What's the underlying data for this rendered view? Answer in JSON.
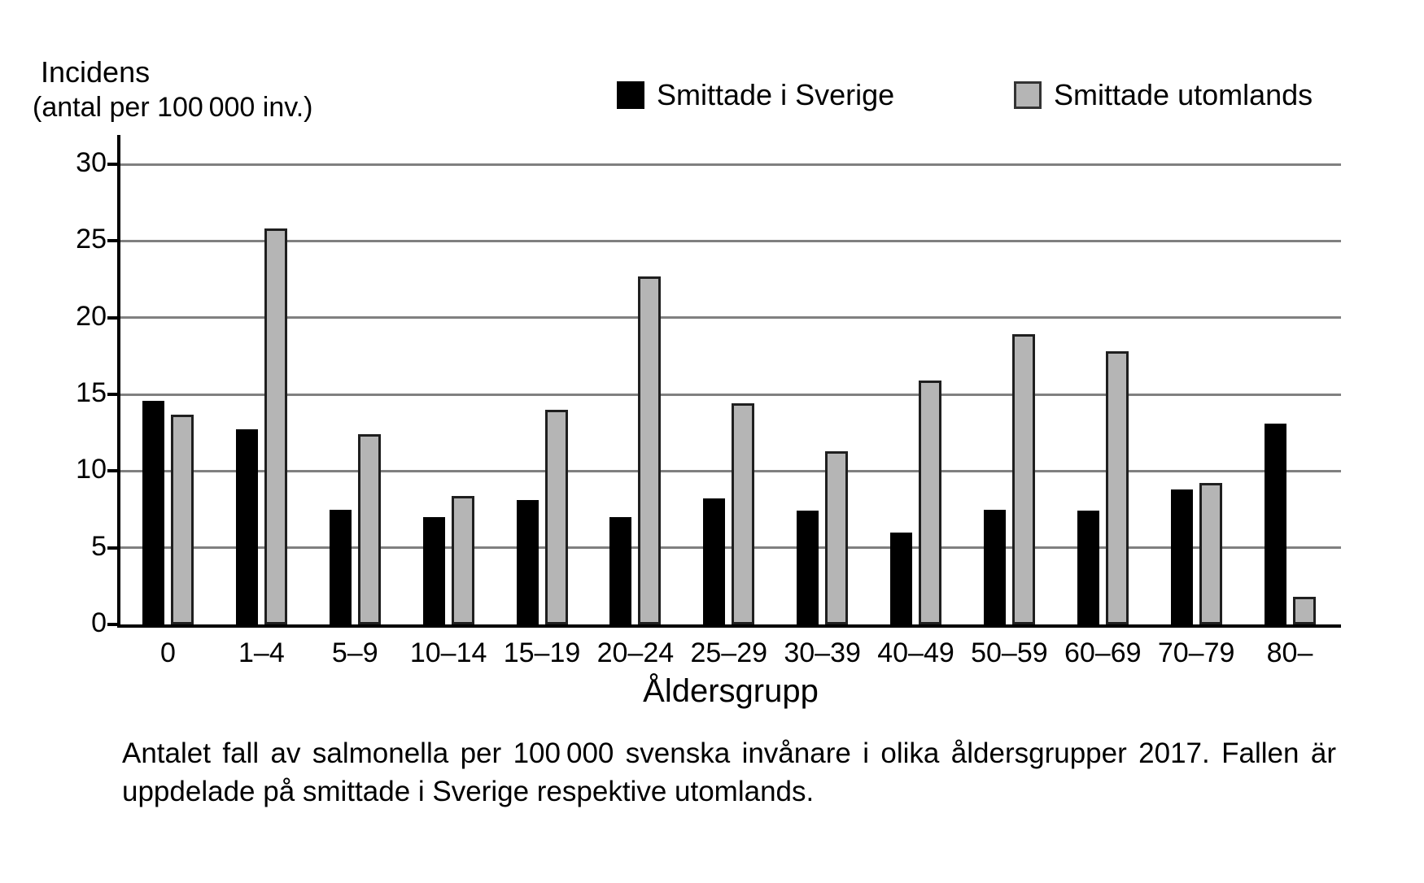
{
  "figure": {
    "y_axis_title_line1": "Incidens",
    "y_axis_title_line2": "(antal per 100 000 inv.)",
    "x_axis_title": "Åldersgrupp",
    "caption": "Antalet fall av salmonella per 100 000 svenska invånare i olika åldersgrupper 2017. Fallen är uppdelade på smittade i Sverige respektive utomlands."
  },
  "legend": [
    {
      "label": "Smittade i Sverige",
      "color": "#000000"
    },
    {
      "label": "Smittade utomlands",
      "color": "#b5b5b5"
    }
  ],
  "colors": {
    "bar_black": "#000000",
    "bar_gray": "#b5b5b5",
    "bar_gray_border": "#1f1f1f",
    "gridline": "#808080",
    "axis": "#000000"
  },
  "chart_data": {
    "type": "bar",
    "title": "",
    "xlabel": "Åldersgrupp",
    "ylabel": "Incidens (antal per 100 000 inv.)",
    "categories": [
      "0",
      "1–4",
      "5–9",
      "10–14",
      "15–19",
      "20–24",
      "25–29",
      "30–39",
      "40–49",
      "50–59",
      "60–69",
      "70–79",
      "80–"
    ],
    "series": [
      {
        "name": "Smittade i Sverige",
        "color": "#000000",
        "values": [
          14.6,
          12.7,
          7.5,
          7.0,
          8.1,
          7.0,
          8.2,
          7.4,
          6.0,
          7.5,
          7.4,
          8.8,
          13.1
        ]
      },
      {
        "name": "Smittade utomlands",
        "color": "#b5b5b5",
        "values": [
          13.7,
          25.8,
          12.4,
          8.4,
          14.0,
          22.7,
          14.4,
          11.3,
          15.9,
          18.9,
          17.8,
          9.2,
          1.8
        ]
      }
    ],
    "ylim": [
      0,
      30
    ],
    "yticks": [
      0,
      5,
      10,
      15,
      20,
      25,
      30
    ],
    "grid": "horizontal",
    "legend_position": "top"
  }
}
